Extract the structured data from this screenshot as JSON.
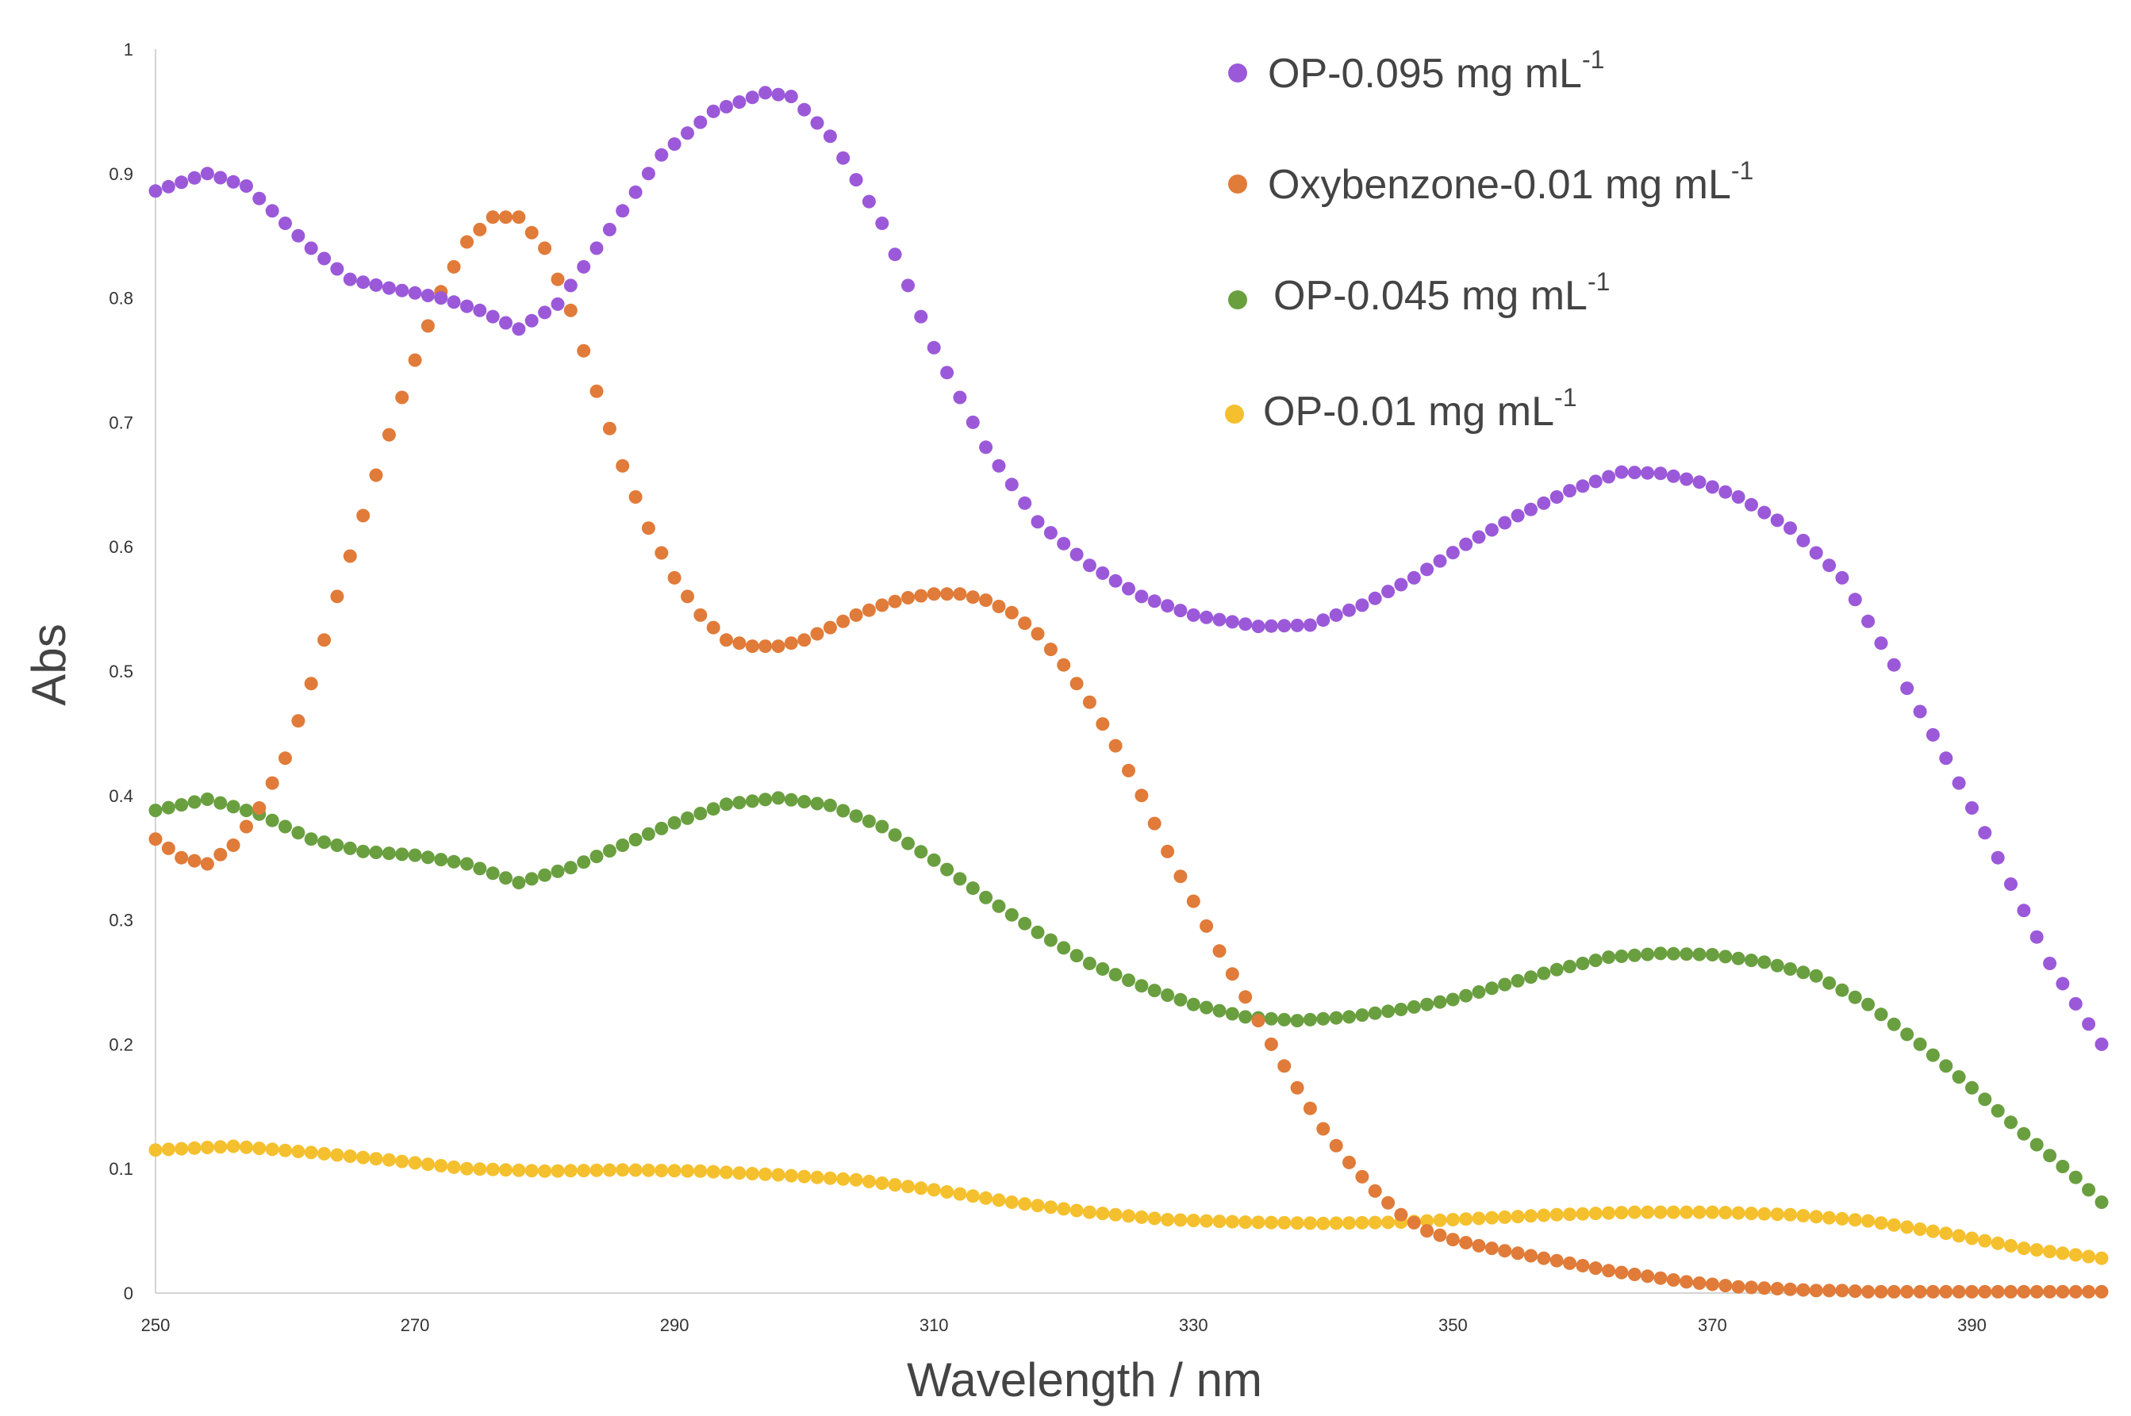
{
  "chart_data": {
    "type": "scatter",
    "title": "",
    "xlabel": "Wavelength / nm",
    "ylabel": "Abs",
    "xlim": [
      250,
      400
    ],
    "ylim": [
      0,
      1
    ],
    "xticks": [
      250,
      270,
      290,
      310,
      330,
      350,
      370,
      390
    ],
    "xtick_labels": [
      "250",
      "270",
      "290",
      "310",
      "330",
      "350",
      "370",
      "390"
    ],
    "yticks": [
      0,
      0.1,
      0.2,
      0.3,
      0.4,
      0.5,
      0.6,
      0.7,
      0.8,
      0.9,
      1
    ],
    "ytick_labels": [
      "0",
      "0.1",
      "0.2",
      "0.3",
      "0.4",
      "0.5",
      "0.6",
      "0.7",
      "0.8",
      "0.9",
      "1"
    ],
    "grid": false,
    "legend_position": "top-right",
    "series": [
      {
        "name": "OP-0.095 mg mL-1",
        "legend_main": "OP-0.095 mg mL",
        "legend_sup": "-1",
        "color": "#9b59d9",
        "x": [
          250,
          254,
          257,
          259,
          262,
          265,
          268,
          272,
          275,
          278,
          281,
          285,
          289,
          293,
          297,
          299,
          302,
          306,
          310,
          314,
          318,
          322,
          326,
          330,
          335,
          339,
          343,
          347,
          351,
          355,
          359,
          363,
          366,
          369,
          372,
          376,
          380,
          384,
          388,
          392,
          396,
          400
        ],
        "values": [
          0.886,
          0.9,
          0.89,
          0.87,
          0.84,
          0.815,
          0.808,
          0.8,
          0.79,
          0.775,
          0.795,
          0.855,
          0.915,
          0.95,
          0.965,
          0.962,
          0.93,
          0.86,
          0.76,
          0.68,
          0.62,
          0.585,
          0.56,
          0.545,
          0.536,
          0.537,
          0.553,
          0.575,
          0.602,
          0.625,
          0.645,
          0.66,
          0.659,
          0.652,
          0.64,
          0.615,
          0.575,
          0.505,
          0.43,
          0.35,
          0.265,
          0.2
        ]
      },
      {
        "name": "Oxybenzone-0.01 mg mL-1",
        "legend_main": "Oxybenzone-0.01 mg mL",
        "legend_sup": "-1",
        "color": "#e07b39",
        "x": [
          250,
          252,
          254,
          256,
          258,
          260,
          262,
          264,
          266,
          268,
          270,
          272,
          274,
          276,
          278,
          280,
          282,
          284,
          286,
          288,
          290,
          292,
          294,
          296,
          298,
          300,
          302,
          304,
          306,
          308,
          310,
          312,
          314,
          316,
          318,
          320,
          322,
          324,
          326,
          328,
          330,
          332,
          334,
          336,
          338,
          340,
          342,
          344,
          346,
          348,
          350,
          352,
          354,
          356,
          358,
          360,
          362,
          364,
          366,
          368,
          370,
          372,
          374,
          376,
          378,
          380,
          382,
          384,
          386,
          388,
          390,
          392,
          394,
          396,
          398,
          400
        ],
        "values": [
          0.365,
          0.35,
          0.345,
          0.36,
          0.39,
          0.43,
          0.49,
          0.56,
          0.625,
          0.69,
          0.75,
          0.805,
          0.845,
          0.865,
          0.865,
          0.84,
          0.79,
          0.725,
          0.665,
          0.615,
          0.575,
          0.545,
          0.525,
          0.52,
          0.52,
          0.525,
          0.535,
          0.545,
          0.553,
          0.559,
          0.562,
          0.562,
          0.557,
          0.547,
          0.53,
          0.505,
          0.475,
          0.44,
          0.4,
          0.355,
          0.315,
          0.275,
          0.238,
          0.2,
          0.165,
          0.132,
          0.105,
          0.082,
          0.063,
          0.05,
          0.043,
          0.038,
          0.034,
          0.03,
          0.026,
          0.022,
          0.018,
          0.015,
          0.012,
          0.009,
          0.007,
          0.005,
          0.004,
          0.003,
          0.002,
          0.002,
          0.001,
          0.001,
          0.001,
          0.001,
          0.001,
          0.001,
          0.001,
          0.001,
          0.001,
          0.001
        ]
      },
      {
        "name": "OP-0.045 mg mL-1",
        "legend_main": "OP-0.045 mg mL",
        "legend_sup": "-1",
        "color": "#6a9f40",
        "x": [
          250,
          254,
          258,
          262,
          266,
          270,
          274,
          278,
          282,
          286,
          290,
          294,
          298,
          302,
          306,
          310,
          314,
          318,
          322,
          326,
          330,
          334,
          338,
          342,
          346,
          350,
          354,
          358,
          362,
          366,
          370,
          374,
          378,
          382,
          386,
          390,
          394,
          398,
          400
        ],
        "values": [
          0.388,
          0.397,
          0.385,
          0.365,
          0.355,
          0.352,
          0.345,
          0.33,
          0.342,
          0.36,
          0.378,
          0.393,
          0.398,
          0.392,
          0.375,
          0.348,
          0.318,
          0.29,
          0.265,
          0.247,
          0.232,
          0.222,
          0.219,
          0.222,
          0.228,
          0.236,
          0.248,
          0.26,
          0.27,
          0.273,
          0.272,
          0.266,
          0.255,
          0.232,
          0.2,
          0.165,
          0.128,
          0.093,
          0.073
        ]
      },
      {
        "name": "OP-0.01 mg mL-1",
        "legend_main": "OP-0.01 mg mL",
        "legend_sup": "-1",
        "color": "#f5c02e",
        "x": [
          250,
          256,
          262,
          268,
          274,
          280,
          286,
          292,
          298,
          304,
          310,
          316,
          322,
          328,
          334,
          340,
          346,
          352,
          358,
          364,
          370,
          376,
          382,
          388,
          394,
          400
        ],
        "values": [
          0.115,
          0.118,
          0.113,
          0.107,
          0.1,
          0.098,
          0.099,
          0.098,
          0.095,
          0.091,
          0.083,
          0.073,
          0.065,
          0.059,
          0.057,
          0.056,
          0.057,
          0.06,
          0.063,
          0.065,
          0.065,
          0.063,
          0.058,
          0.048,
          0.036,
          0.028
        ]
      }
    ]
  }
}
